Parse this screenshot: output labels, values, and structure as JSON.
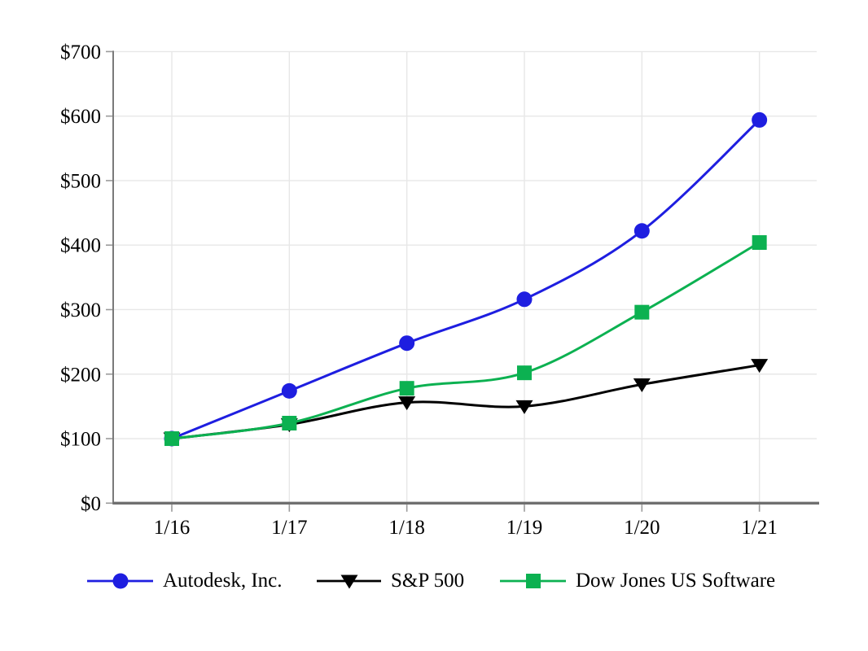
{
  "page": {
    "background": "#ffffff"
  },
  "chart_data": {
    "type": "line",
    "title": "",
    "xlabel": "",
    "ylabel": "",
    "x_categories": [
      "1/16",
      "1/17",
      "1/18",
      "1/19",
      "1/20",
      "1/21"
    ],
    "y_tick_values": [
      0,
      100,
      200,
      300,
      400,
      500,
      600,
      700
    ],
    "y_tick_labels": [
      "$0",
      "$100",
      "$200",
      "$300",
      "$400",
      "$500",
      "$600",
      "$700"
    ],
    "ylim": [
      0,
      700
    ],
    "grid": true,
    "line_style": "smooth",
    "legend_position": "bottom",
    "series": [
      {
        "name": "Autodesk, Inc.",
        "marker": "circle",
        "color": "#1e1ee0",
        "values": [
          100,
          174,
          248,
          316,
          422,
          594
        ]
      },
      {
        "name": "S&P 500",
        "marker": "triangle-down",
        "color": "#000000",
        "values": [
          100,
          122,
          156,
          150,
          184,
          214
        ]
      },
      {
        "name": "Dow Jones US Software",
        "marker": "square",
        "color": "#0cb151",
        "values": [
          100,
          124,
          178,
          202,
          296,
          404
        ]
      }
    ],
    "colors": {
      "grid": "#e7e7e7",
      "tick": "#9a9a9a",
      "y_axis": "#7a7a7a",
      "x_axis": "#6f6f6f",
      "label_text": "#000000"
    }
  }
}
